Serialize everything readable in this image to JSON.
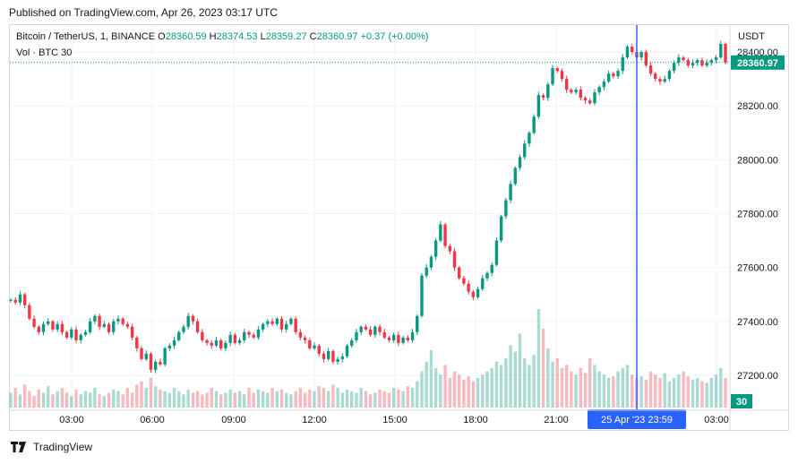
{
  "published": "Published on TradingView.com, Apr 26, 2023 03:17 UTC",
  "symbol": {
    "title": "Bitcoin / TetherUS, 1, BINANCE",
    "o_label": "O",
    "o": "28360.59",
    "h_label": "H",
    "h": "28374.53",
    "l_label": "L",
    "l": "28359.27",
    "c_label": "C",
    "c": "28360.97",
    "change": "+0.37 (+0.00%)"
  },
  "volume": {
    "label": "Vol · BTC",
    "value": "30"
  },
  "currency": "USDT",
  "crosshair_label": "25 Apr '23   23:59",
  "brand": {
    "name": "TradingView",
    "logo_icon": "tradingview-logo-icon"
  },
  "colors": {
    "up": "#089981",
    "down": "#f23645",
    "crosshair": "#2962ff",
    "price_line": "#089981"
  },
  "chart_data": {
    "type": "line",
    "title": "Bitcoin / TetherUS, 1, BINANCE",
    "x_ticks": [
      "03:00",
      "06:00",
      "09:00",
      "12:00",
      "15:00",
      "18:00",
      "21:00",
      "03:00"
    ],
    "y_ticks": [
      "27200.00",
      "27400.00",
      "27600.00",
      "27800.00",
      "28000.00",
      "28200.00",
      "28400.00"
    ],
    "ylim": [
      27080,
      28500
    ],
    "grid": true,
    "last_price": 28360.97,
    "last_price_label": "28360.97",
    "last_volume_label": "30",
    "series": [
      {
        "values": [
          27480,
          27470,
          27500,
          27460,
          27410,
          27380,
          27360,
          27390,
          27400,
          27370,
          27390,
          27360,
          27340,
          27370,
          27330,
          27350,
          27360,
          27400,
          27420,
          27380,
          27390,
          27360,
          27400,
          27410,
          27390,
          27380,
          27340,
          27300,
          27260,
          27280,
          27220,
          27250,
          27240,
          27300,
          27310,
          27330,
          27360,
          27380,
          27420,
          27400,
          27360,
          27330,
          27320,
          27310,
          27330,
          27300,
          27320,
          27350,
          27320,
          27330,
          27360,
          27350,
          27340,
          27370,
          27390,
          27400,
          27390,
          27410,
          27370,
          27390,
          27410,
          27360,
          27340,
          27330,
          27300,
          27310,
          27280,
          27260,
          27290,
          27250,
          27260,
          27270,
          27310,
          27330,
          27360,
          27380,
          27370,
          27350,
          27380,
          27360,
          27340,
          27330,
          27350,
          27320,
          27340,
          27330,
          27360,
          27420,
          27570,
          27600,
          27640,
          27700,
          27760,
          27680,
          27660,
          27600,
          27560,
          27540,
          27510,
          27490,
          27520,
          27560,
          27580,
          27610,
          27700,
          27790,
          27850,
          27910,
          27970,
          28010,
          28060,
          28100,
          28160,
          28240,
          28230,
          28280,
          28340,
          28330,
          28300,
          28260,
          28250,
          28260,
          28230,
          28220,
          28210,
          28250,
          28270,
          28290,
          28320,
          28310,
          28330,
          28380,
          28420,
          28400,
          28380,
          28400,
          28350,
          28320,
          28300,
          28290,
          28300,
          28330,
          28360,
          28380,
          28370,
          28350,
          28360,
          28370,
          28350,
          28360,
          28370,
          28380,
          28430,
          28361
        ]
      }
    ],
    "volume": [
      9,
      12,
      8,
      14,
      10,
      7,
      11,
      9,
      13,
      8,
      10,
      12,
      9,
      7,
      11,
      8,
      10,
      9,
      12,
      8,
      7,
      9,
      11,
      10,
      8,
      12,
      9,
      14,
      16,
      12,
      18,
      13,
      11,
      10,
      9,
      12,
      10,
      8,
      11,
      9,
      10,
      8,
      9,
      12,
      10,
      8,
      9,
      11,
      9,
      10,
      8,
      12,
      9,
      11,
      10,
      9,
      12,
      10,
      11,
      9,
      8,
      10,
      12,
      9,
      11,
      10,
      13,
      12,
      10,
      14,
      12,
      9,
      11,
      10,
      9,
      12,
      10,
      8,
      9,
      11,
      10,
      9,
      12,
      11,
      10,
      13,
      12,
      16,
      22,
      28,
      35,
      24,
      20,
      26,
      18,
      22,
      20,
      17,
      19,
      16,
      18,
      20,
      22,
      24,
      28,
      26,
      30,
      38,
      34,
      45,
      30,
      26,
      32,
      60,
      48,
      36,
      28,
      30,
      24,
      26,
      22,
      20,
      24,
      21,
      30,
      26,
      22,
      20,
      18,
      19,
      22,
      24,
      26,
      20,
      18,
      19,
      17,
      22,
      20,
      18,
      21,
      16,
      18,
      20,
      22,
      19,
      17,
      18,
      16,
      15,
      18,
      20,
      24,
      18
    ]
  }
}
